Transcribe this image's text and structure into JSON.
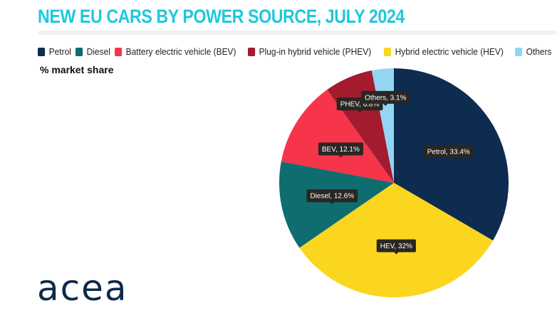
{
  "title": "NEW EU CARS BY POWER SOURCE, JULY 2024",
  "subtitle": "% market share",
  "logo": "acea",
  "chart_data": {
    "type": "pie",
    "title": "NEW EU CARS BY POWER SOURCE, JULY 2024",
    "subtitle": "% market share",
    "legend_placement": "top",
    "legend": [
      "Petrol",
      "Diesel",
      "Battery electric vehicle (BEV)",
      "Plug-in hybrid vehicle (PHEV)",
      "Hybrid electric vehicle (HEV)",
      "Others"
    ],
    "slices": [
      {
        "name": "Petrol",
        "label": "Petrol, 33.4%",
        "value": 33.4,
        "color": "#0d2c4f"
      },
      {
        "name": "HEV",
        "label": "HEV, 32%",
        "value": 32,
        "color": "#fbd61e"
      },
      {
        "name": "Diesel",
        "label": "Diesel, 12.6%",
        "value": 12.6,
        "color": "#0f6d70"
      },
      {
        "name": "BEV",
        "label": "BEV, 12.1%",
        "value": 12.1,
        "color": "#f6344a"
      },
      {
        "name": "PHEV",
        "label": "PHEV, 6.8%",
        "value": 6.8,
        "color": "#a21b2f"
      },
      {
        "name": "Others",
        "label": "Others, 3.1%",
        "value": 3.1,
        "color": "#93d5f2"
      }
    ],
    "legend_colors": [
      "#0d2c4f",
      "#0f6d70",
      "#f6344a",
      "#a21b2f",
      "#fbd61e",
      "#93d5f2"
    ]
  }
}
